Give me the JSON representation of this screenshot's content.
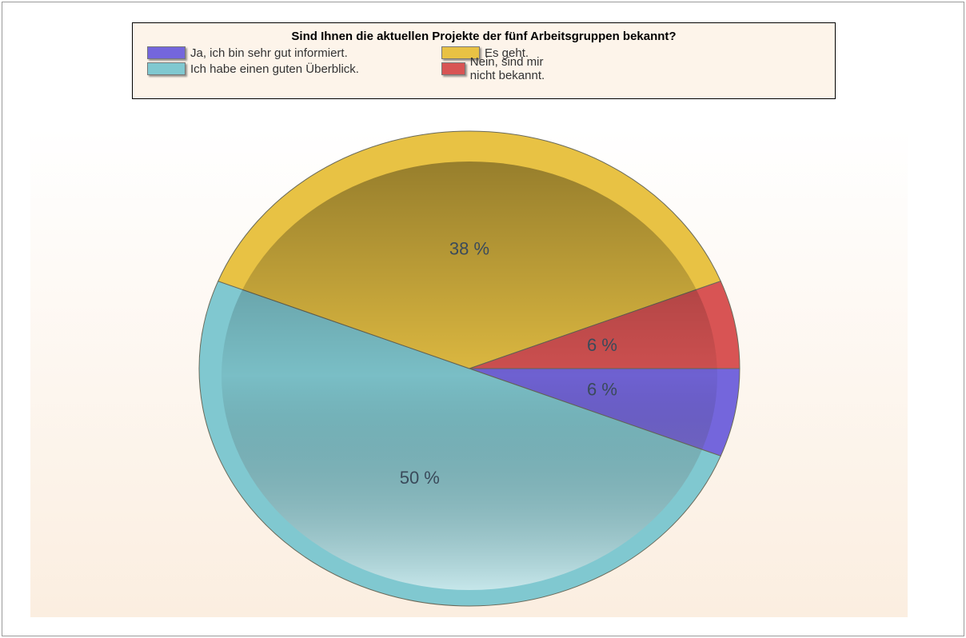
{
  "chart_data": {
    "type": "pie",
    "title": "Sind Ihnen die aktuellen Projekte der fünf Arbeitsgruppen bekannt?",
    "categories": [
      "Ja, ich bin sehr gut informiert.",
      "Ich habe einen guten Überblick.",
      "Es geht.",
      "Nein, sind mir nicht bekannt."
    ],
    "values": [
      6,
      50,
      38,
      6
    ],
    "value_labels": [
      "6 %",
      "50 %",
      "38 %",
      "6 %"
    ],
    "colors": [
      "#7466dc",
      "#80c8d0",
      "#e8c244",
      "#d85454"
    ]
  }
}
